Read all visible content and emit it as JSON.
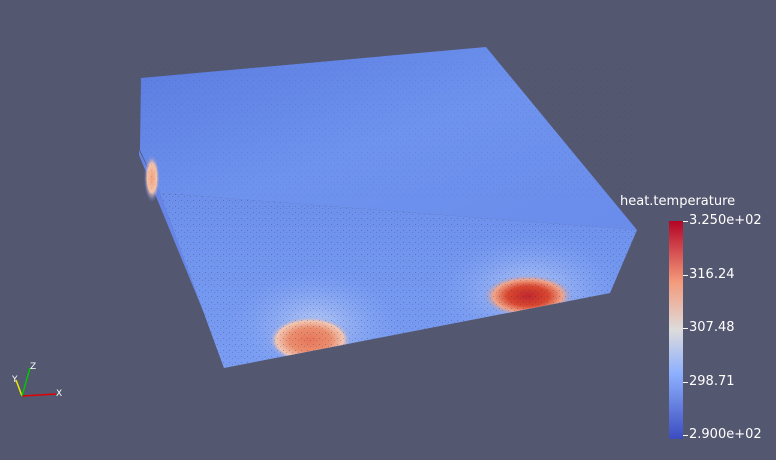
{
  "colorbar": {
    "title": "heat.temperature",
    "max_label": "3.250e+02",
    "min_label": "2.900e+02",
    "ticks": [
      "316.24",
      "307.48",
      "298.71"
    ],
    "colors": {
      "low": "#3b4cc0",
      "mid": "#dddcdc",
      "high": "#b40426"
    }
  },
  "axes_triad": {
    "x_label": "X",
    "y_label": "Y",
    "z_label": "Z",
    "colors": {
      "x": "#e00000",
      "y": "#e8e800",
      "z": "#00c800"
    }
  },
  "background_color": "#545770"
}
